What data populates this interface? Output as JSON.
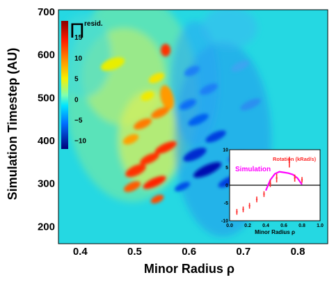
{
  "chart_data": [
    {
      "type": "heatmap",
      "xlabel": "Minor Radius ρ",
      "ylabel": "Simulation Timestep (AU)",
      "xlim": [
        0.36,
        0.855
      ],
      "ylim": [
        160,
        705
      ],
      "xticks": [
        "0.4",
        "0.5",
        "0.6",
        "0.7",
        "0.8"
      ],
      "xtick_values": [
        0.4,
        0.5,
        0.6,
        0.7,
        0.8
      ],
      "yticks": [
        "700",
        "600",
        "500",
        "400",
        "300",
        "200"
      ],
      "ytick_values": [
        700,
        600,
        500,
        400,
        300,
        200
      ],
      "colorbar": {
        "label_symbol": "Π",
        "label_superscript": "resid.",
        "range": [
          -12,
          19
        ],
        "ticks": [
          "15",
          "10",
          "5",
          "0",
          "−5",
          "−10"
        ],
        "tick_values": [
          15,
          10,
          5,
          0,
          -5,
          -10
        ]
      },
      "background_color": "#25d8e2",
      "features": [
        {
          "x": 0.555,
          "t": 385,
          "value": 18
        },
        {
          "x": 0.52,
          "t": 355,
          "value": 16
        },
        {
          "x": 0.5,
          "t": 320,
          "value": 16
        },
        {
          "x": 0.54,
          "t": 300,
          "value": 15
        },
        {
          "x": 0.555,
          "t": 610,
          "value": 17
        },
        {
          "x": 0.56,
          "t": 480,
          "value": 11
        },
        {
          "x": 0.51,
          "t": 430,
          "value": 9
        },
        {
          "x": 0.47,
          "t": 600,
          "value": 6
        },
        {
          "x": 0.62,
          "t": 305,
          "value": -11
        },
        {
          "x": 0.64,
          "t": 420,
          "value": -9
        },
        {
          "x": 0.6,
          "t": 520,
          "value": -7
        }
      ]
    },
    {
      "type": "line",
      "xlabel": "Minor Radius ρ",
      "xlim": [
        0,
        1
      ],
      "ylim": [
        -10,
        10
      ],
      "xticks": [
        "0.0",
        "0.2",
        "0.4",
        "0.6",
        "0.8",
        "1.0"
      ],
      "xtick_values": [
        0,
        0.2,
        0.4,
        0.6,
        0.8,
        1.0
      ],
      "yticks": [
        "10",
        "5",
        "0",
        "-5",
        "-10"
      ],
      "ytick_values": [
        10,
        5,
        0,
        -5,
        -10
      ],
      "series": [
        {
          "name": "Simulation",
          "color": "#ff00ff",
          "x": [
            0.4,
            0.45,
            0.5,
            0.55,
            0.6,
            0.65,
            0.7,
            0.75,
            0.8
          ],
          "y": [
            -1.5,
            1.5,
            3.2,
            3.8,
            3.6,
            3.4,
            3.0,
            2.0,
            0.2
          ]
        },
        {
          "name": "Rotation (kRad/s)",
          "color": "#ff2a2a",
          "points": [
            {
              "x": 0.08,
              "y": -7.5,
              "err": 0.8
            },
            {
              "x": 0.15,
              "y": -6.8,
              "err": 0.8
            },
            {
              "x": 0.22,
              "y": -5.8,
              "err": 0.8
            },
            {
              "x": 0.3,
              "y": -4.0,
              "err": 0.8
            },
            {
              "x": 0.38,
              "y": -2.5,
              "err": 0.8
            },
            {
              "x": 0.45,
              "y": 0.5,
              "err": 1.0
            },
            {
              "x": 0.52,
              "y": 2.0,
              "err": 1.2
            },
            {
              "x": 0.66,
              "y": 6.5,
              "err": 1.5
            },
            {
              "x": 0.72,
              "y": 2.0,
              "err": 1.0
            },
            {
              "x": 0.8,
              "y": 1.5,
              "err": 0.8
            }
          ]
        }
      ]
    }
  ]
}
